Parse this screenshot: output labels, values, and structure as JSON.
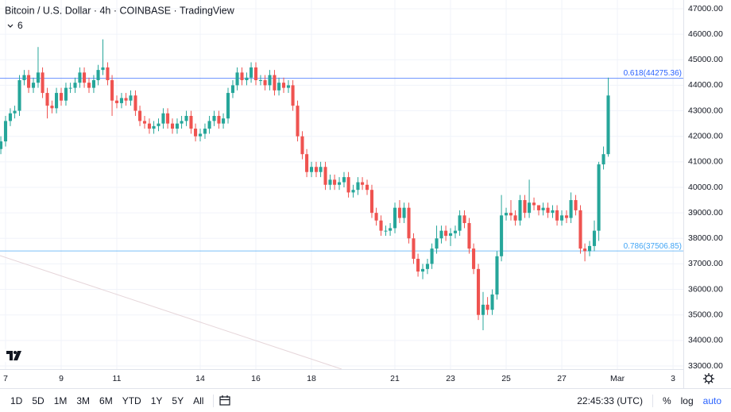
{
  "chart_data": {
    "type": "candlestick",
    "title": "Bitcoin / U.S. Dollar · 4h · COINBASE · TradingView",
    "indicator": "6",
    "x": [
      6.83,
      7,
      7.17,
      7.33,
      7.5,
      7.67,
      7.83,
      8,
      8.17,
      8.33,
      8.5,
      8.67,
      8.83,
      9,
      9.17,
      9.33,
      9.5,
      9.67,
      9.83,
      10,
      10.17,
      10.33,
      10.5,
      10.67,
      10.83,
      11,
      11.17,
      11.33,
      11.5,
      11.67,
      11.83,
      12,
      12.17,
      12.33,
      12.5,
      12.67,
      12.83,
      13,
      13.17,
      13.33,
      13.5,
      13.67,
      13.83,
      14,
      14.17,
      14.33,
      14.5,
      14.67,
      14.83,
      15,
      15.17,
      15.33,
      15.5,
      15.67,
      15.83,
      16,
      16.17,
      16.33,
      16.5,
      16.67,
      16.83,
      17,
      17.17,
      17.33,
      17.5,
      17.67,
      17.83,
      18,
      18.17,
      18.33,
      18.5,
      18.67,
      18.83,
      19,
      19.17,
      19.33,
      19.5,
      19.67,
      19.83,
      20,
      20.17,
      20.33,
      20.5,
      20.67,
      20.83,
      21,
      21.17,
      21.33,
      21.5,
      21.67,
      21.83,
      22,
      22.17,
      22.33,
      22.5,
      22.67,
      22.83,
      23,
      23.17,
      23.33,
      23.5,
      23.67,
      23.83,
      24,
      24.17,
      24.33,
      24.5,
      24.67,
      24.83,
      25,
      25.17,
      25.33,
      25.5,
      25.67,
      25.83,
      26,
      26.17,
      26.33,
      26.5,
      26.67,
      26.83,
      27,
      27.17,
      27.33,
      27.5,
      27.67,
      27.83,
      28,
      28.17,
      28.33,
      28.5,
      28.67
    ],
    "open": [
      41500,
      41800,
      42600,
      42900,
      43000,
      44200,
      44400,
      43900,
      44100,
      44500,
      43700,
      43200,
      43100,
      43700,
      43400,
      43900,
      43900,
      44100,
      44500,
      44100,
      43900,
      44200,
      44600,
      44700,
      44200,
      43400,
      43300,
      43500,
      43400,
      43600,
      43000,
      42600,
      42500,
      42300,
      42400,
      42500,
      42900,
      42500,
      42300,
      42500,
      42600,
      42800,
      42300,
      42000,
      42100,
      42300,
      42600,
      42800,
      42500,
      42700,
      43700,
      44000,
      44500,
      44200,
      44300,
      44700,
      44200,
      44200,
      44000,
      44400,
      43800,
      44100,
      43900,
      44000,
      43200,
      42000,
      41300,
      40600,
      40800,
      40600,
      40800,
      40100,
      40300,
      40100,
      40200,
      40400,
      39800,
      39900,
      40200,
      40100,
      39900,
      39000,
      38700,
      38300,
      38300,
      38400,
      39200,
      38800,
      39200,
      38000,
      37200,
      36700,
      36800,
      37000,
      37600,
      38000,
      38300,
      38100,
      38200,
      38300,
      38900,
      38600,
      37600,
      36800,
      35000,
      35400,
      35200,
      35800,
      37300,
      38900,
      39000,
      38900,
      38700,
      39500,
      39000,
      39400,
      39300,
      39100,
      39200,
      39000,
      39100,
      38700,
      38900,
      38800,
      39500,
      39100,
      37600,
      37500,
      37700,
      38300,
      40900,
      41300
    ],
    "high": [
      42000,
      42800,
      43100,
      43200,
      44400,
      44600,
      44600,
      44300,
      45500,
      44700,
      43900,
      43400,
      43900,
      43900,
      44100,
      44100,
      44300,
      44700,
      44700,
      44300,
      44400,
      44800,
      45800,
      44900,
      44400,
      43600,
      43700,
      43700,
      43800,
      43800,
      43200,
      42800,
      42700,
      42600,
      42700,
      43100,
      43100,
      42700,
      42700,
      42800,
      43000,
      43000,
      42500,
      42300,
      42500,
      42800,
      43000,
      43000,
      42900,
      43900,
      44200,
      44700,
      44700,
      44500,
      44900,
      44900,
      44400,
      44400,
      44600,
      44600,
      44300,
      44300,
      44200,
      44200,
      43400,
      42200,
      41500,
      41000,
      41000,
      41000,
      41000,
      40500,
      40500,
      40400,
      40600,
      40600,
      40100,
      40400,
      40400,
      40300,
      40100,
      39200,
      38900,
      38500,
      38600,
      39400,
      39500,
      39400,
      39400,
      38200,
      37400,
      37000,
      37200,
      37800,
      38500,
      38500,
      38500,
      38400,
      38500,
      39100,
      39100,
      38800,
      37800,
      37000,
      35900,
      35700,
      36000,
      37500,
      39700,
      39200,
      39500,
      39100,
      39700,
      39700,
      40300,
      39600,
      39300,
      39400,
      39400,
      39300,
      39300,
      39100,
      39100,
      39800,
      39700,
      39300,
      37800,
      37900,
      38700,
      41000,
      41600,
      44300
    ],
    "low": [
      41300,
      41600,
      42400,
      42700,
      42800,
      44000,
      43700,
      43700,
      43900,
      43500,
      42700,
      42900,
      42900,
      43200,
      43200,
      43700,
      43700,
      43900,
      43900,
      43700,
      43700,
      44000,
      44400,
      44000,
      42800,
      43100,
      43100,
      43200,
      43200,
      42800,
      42400,
      42300,
      42100,
      42100,
      42200,
      42300,
      42300,
      42100,
      42100,
      42300,
      42400,
      42100,
      41800,
      41800,
      41900,
      42100,
      42400,
      42300,
      42300,
      42500,
      43500,
      43800,
      44000,
      44000,
      44100,
      44000,
      44000,
      43800,
      43800,
      43600,
      43600,
      43700,
      43700,
      43000,
      41800,
      41100,
      40400,
      40400,
      40400,
      40400,
      39900,
      39900,
      39900,
      39900,
      40000,
      39600,
      39600,
      39700,
      39900,
      39700,
      38800,
      38500,
      38100,
      38100,
      38100,
      38200,
      38600,
      38600,
      37800,
      37000,
      36500,
      36400,
      36600,
      36800,
      37400,
      37800,
      37900,
      37700,
      38000,
      38100,
      38400,
      37400,
      36600,
      34800,
      34400,
      35000,
      35000,
      35600,
      37100,
      38700,
      38700,
      38500,
      38500,
      38800,
      38800,
      39100,
      38900,
      38900,
      38800,
      38800,
      38500,
      38500,
      38600,
      38600,
      38900,
      37400,
      37100,
      37300,
      37500,
      37900,
      40700,
      41200
    ],
    "close": [
      41800,
      42600,
      42900,
      43000,
      44200,
      44400,
      43900,
      44100,
      44500,
      43700,
      43200,
      43100,
      43700,
      43400,
      43900,
      43900,
      44100,
      44500,
      44100,
      43900,
      44200,
      44600,
      44700,
      44200,
      43400,
      43300,
      43500,
      43400,
      43600,
      43000,
      42600,
      42500,
      42300,
      42400,
      42500,
      42900,
      42500,
      42300,
      42500,
      42600,
      42800,
      42300,
      42000,
      42100,
      42300,
      42600,
      42800,
      42500,
      42700,
      43700,
      44000,
      44500,
      44200,
      44300,
      44700,
      44200,
      44200,
      44000,
      44400,
      43800,
      44100,
      43900,
      44000,
      43200,
      42000,
      41300,
      40600,
      40800,
      40600,
      40800,
      40100,
      40300,
      40100,
      40200,
      40400,
      39800,
      39900,
      40200,
      40100,
      39900,
      39000,
      38700,
      38300,
      38300,
      38400,
      39200,
      38800,
      39200,
      38000,
      37200,
      36700,
      36800,
      37000,
      37600,
      38000,
      38300,
      38100,
      38200,
      38300,
      38900,
      38600,
      37600,
      36800,
      35000,
      35400,
      35200,
      35800,
      37300,
      38900,
      39000,
      38900,
      38700,
      39500,
      39000,
      39400,
      39300,
      39100,
      39200,
      39000,
      39100,
      38700,
      38900,
      38800,
      39500,
      39100,
      37600,
      37500,
      37700,
      38300,
      40900,
      41300,
      43600
    ],
    "up_color": "#26a69a",
    "down_color": "#ef5350",
    "xlim": [
      6.8,
      31.37
    ],
    "ylim": [
      32875,
      47342
    ],
    "xticks": [
      7,
      9,
      11,
      14,
      16,
      18,
      21,
      23,
      25,
      27,
      {
        "value": 29,
        "label": "Mar"
      },
      {
        "value": 31,
        "label": "3"
      }
    ],
    "yticks": [
      {
        "value": 33000,
        "label": "33000.00"
      },
      {
        "value": 34000,
        "label": "34000.00"
      },
      {
        "value": 35000,
        "label": "35000.00"
      },
      {
        "value": 36000,
        "label": "36000.00"
      },
      {
        "value": 37000,
        "label": "37000.00"
      },
      {
        "value": 38000,
        "label": "38000.00"
      },
      {
        "value": 39000,
        "label": "39000.00"
      },
      {
        "value": 40000,
        "label": "40000.00"
      },
      {
        "value": 41000,
        "label": "41000.00"
      },
      {
        "value": 42000,
        "label": "42000.00"
      },
      {
        "value": 43000,
        "label": "43000.00"
      },
      {
        "value": 44000,
        "label": "44000.00"
      },
      {
        "value": 45000,
        "label": "45000.00"
      },
      {
        "value": 46000,
        "label": "46000.00"
      },
      {
        "value": 47000,
        "label": "47000.00"
      }
    ],
    "grid": true,
    "annotations": [
      {
        "label": "0.618(44275.36)",
        "value": 44275.36,
        "color": "#2962ff"
      },
      {
        "label": "0.786(37506.85)",
        "value": 37506.85,
        "color": "#42a5f5"
      }
    ]
  },
  "toolbar": {
    "ranges": [
      "1D",
      "5D",
      "1M",
      "3M",
      "6M",
      "YTD",
      "1Y",
      "5Y",
      "All"
    ],
    "time": "22:45:33 (UTC)",
    "options": [
      "%",
      "log",
      "auto"
    ]
  }
}
